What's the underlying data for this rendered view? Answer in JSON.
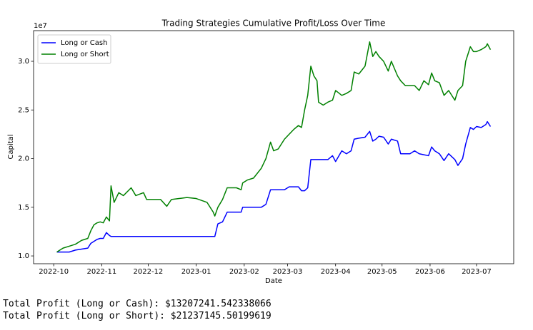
{
  "chart_data": {
    "type": "line",
    "title": "Trading Strategies Cumulative Profit/Loss Over Time",
    "xlabel": "Date",
    "ylabel": "Capital",
    "y_offset_text": "1e7",
    "x": [
      19268,
      19272,
      19276,
      19280,
      19284,
      19288,
      19290,
      19292,
      19294,
      19296,
      19298,
      19300,
      19302,
      19303,
      19305,
      19308,
      19311,
      19316,
      19319,
      19324,
      19326,
      19331,
      19335,
      19339,
      19342,
      19347,
      19352,
      19358,
      19365,
      19369,
      19370,
      19372,
      19375,
      19378,
      19384,
      19387,
      19388,
      19391,
      19395,
      19400,
      19403,
      19406,
      19408,
      19411,
      19415,
      19418,
      19421,
      19424,
      19426,
      19428,
      19430,
      19432,
      19434,
      19436,
      19437,
      19440,
      19443,
      19446,
      19448,
      19452,
      19455,
      19458,
      19460,
      19463,
      19467,
      19470,
      19472,
      19474,
      19476,
      19479,
      19482,
      19484,
      19488,
      19490,
      19493,
      19496,
      19499,
      19502,
      19505,
      19508,
      19510,
      19512,
      19515,
      19518,
      19521,
      19525,
      19527,
      19530,
      19532,
      19535,
      19537,
      19539,
      19542,
      19545,
      19546,
      19548
    ],
    "series": [
      {
        "name": "Long or Cash",
        "color": "#0000ff",
        "values": [
          10400000.0,
          10400000.0,
          10400000.0,
          10600000.0,
          10700000.0,
          10800000.0,
          11300000.0,
          11500000.0,
          11700000.0,
          11800000.0,
          11800000.0,
          12400000.0,
          12100000.0,
          12000000.0,
          12000000.0,
          12000000.0,
          12000000.0,
          12000000.0,
          12000000.0,
          12000000.0,
          12000000.0,
          12000000.0,
          12000000.0,
          12000000.0,
          12000000.0,
          12000000.0,
          12000000.0,
          12000000.0,
          12000000.0,
          12000000.0,
          12000000.0,
          13300000.0,
          13500000.0,
          14500000.0,
          14500000.0,
          14500000.0,
          15000000.0,
          15000000.0,
          15000000.0,
          15000000.0,
          15300000.0,
          16800000.0,
          16800000.0,
          16800000.0,
          16800000.0,
          17100000.0,
          17100000.0,
          17100000.0,
          16700000.0,
          16700000.0,
          17000000.0,
          19900000.0,
          19900000.0,
          19900000.0,
          19900000.0,
          19900000.0,
          19900000.0,
          20300000.0,
          19700000.0,
          20800000.0,
          20500000.0,
          20800000.0,
          22000000.0,
          22100000.0,
          22200000.0,
          22800000.0,
          21800000.0,
          22000000.0,
          22300000.0,
          22200000.0,
          21500000.0,
          22000000.0,
          21800000.0,
          20500000.0,
          20500000.0,
          20500000.0,
          20800000.0,
          20500000.0,
          20400000.0,
          20300000.0,
          21200000.0,
          20800000.0,
          20500000.0,
          19800000.0,
          20500000.0,
          19900000.0,
          19300000.0,
          20000000.0,
          21500000.0,
          23200000.0,
          23000000.0,
          23300000.0,
          23200000.0,
          23500000.0,
          23800000.0,
          23300000.0
        ]
      },
      {
        "name": "Long or Short",
        "color": "#008000",
        "values": [
          10400000.0,
          10800000.0,
          11000000.0,
          11200000.0,
          11600000.0,
          11800000.0,
          12600000.0,
          13200000.0,
          13400000.0,
          13500000.0,
          13400000.0,
          14000000.0,
          13600000.0,
          17200000.0,
          15500000.0,
          16500000.0,
          16200000.0,
          17000000.0,
          16200000.0,
          16500000.0,
          15800000.0,
          15800000.0,
          15800000.0,
          15100000.0,
          15800000.0,
          15900000.0,
          16000000.0,
          15900000.0,
          15500000.0,
          14500000.0,
          14100000.0,
          15000000.0,
          15800000.0,
          17000000.0,
          17000000.0,
          16800000.0,
          17500000.0,
          17800000.0,
          18000000.0,
          19000000.0,
          20000000.0,
          21700000.0,
          20800000.0,
          21000000.0,
          22000000.0,
          22500000.0,
          23000000.0,
          23400000.0,
          23200000.0,
          25000000.0,
          26500000.0,
          29500000.0,
          28500000.0,
          28000000.0,
          25800000.0,
          25500000.0,
          25800000.0,
          26000000.0,
          27000000.0,
          26500000.0,
          26700000.0,
          27000000.0,
          28900000.0,
          28700000.0,
          29500000.0,
          32000000.0,
          30500000.0,
          31000000.0,
          30500000.0,
          30000000.0,
          29000000.0,
          30000000.0,
          28500000.0,
          28000000.0,
          27500000.0,
          27500000.0,
          27500000.0,
          27000000.0,
          28000000.0,
          27600000.0,
          28800000.0,
          28000000.0,
          27800000.0,
          26500000.0,
          27000000.0,
          26000000.0,
          27000000.0,
          27500000.0,
          30000000.0,
          31500000.0,
          31000000.0,
          31000000.0,
          31200000.0,
          31500000.0,
          31800000.0,
          31200000.0
        ]
      }
    ],
    "xlim": [
      19253,
      19563
    ],
    "ylim": [
      9200000,
      33150000
    ],
    "xticks": [
      {
        "value": 19266,
        "label": "2022-10"
      },
      {
        "value": 19297,
        "label": "2022-11"
      },
      {
        "value": 19327,
        "label": "2022-12"
      },
      {
        "value": 19358,
        "label": "2023-01"
      },
      {
        "value": 19389,
        "label": "2023-02"
      },
      {
        "value": 19417,
        "label": "2023-03"
      },
      {
        "value": 19448,
        "label": "2023-04"
      },
      {
        "value": 19478,
        "label": "2023-05"
      },
      {
        "value": 19509,
        "label": "2023-06"
      },
      {
        "value": 19539,
        "label": "2023-07"
      }
    ],
    "yticks": [
      {
        "value": 10000000,
        "label": "1.0"
      },
      {
        "value": 15000000,
        "label": "1.5"
      },
      {
        "value": 20000000,
        "label": "2.0"
      },
      {
        "value": 25000000,
        "label": "2.5"
      },
      {
        "value": 30000000,
        "label": "3.0"
      }
    ],
    "grid": false,
    "legend": "upper left"
  },
  "output": [
    "Total Profit (Long or Cash): $13207241.542338066",
    "Total Profit (Long or Short): $21237145.50199619"
  ]
}
